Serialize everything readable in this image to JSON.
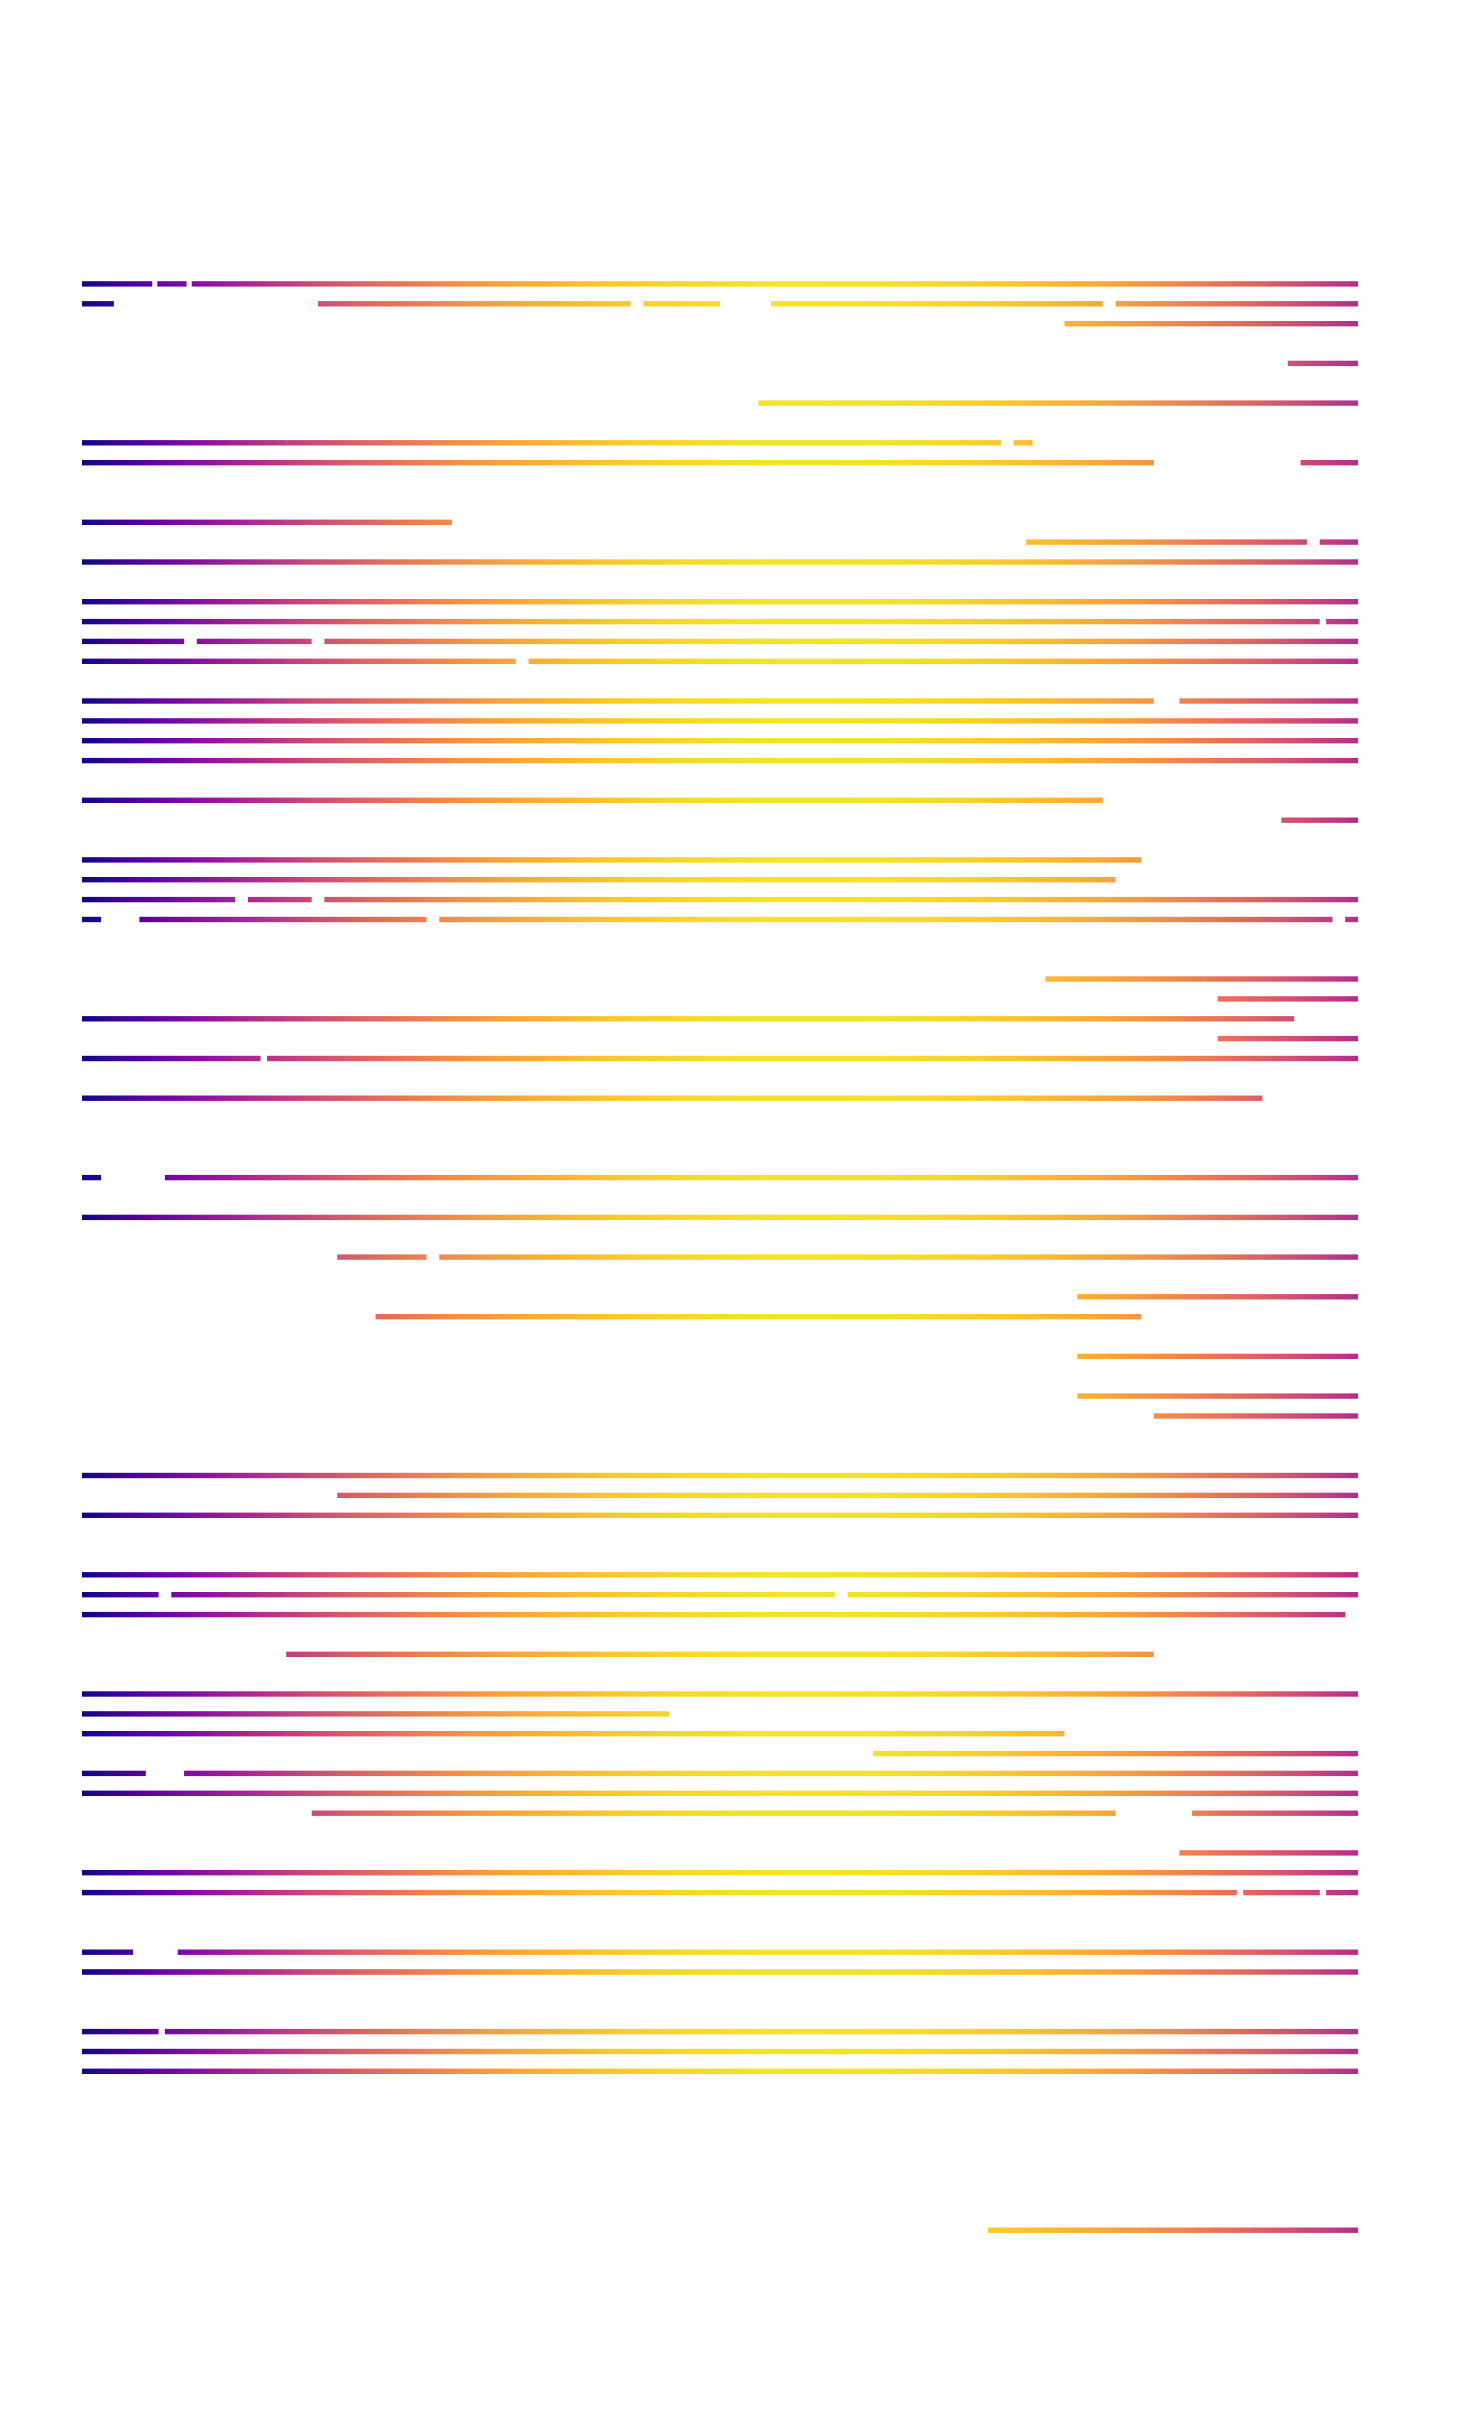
{
  "chart_data": {
    "type": "heatmap",
    "title": "",
    "xlabel": "",
    "ylabel": "",
    "colormap": "plasma",
    "grid": false,
    "axes_visible": false,
    "colors": [
      "#0d0887",
      "#5d01a6",
      "#9c179e",
      "#cc4778",
      "#ed7953",
      "#fdb42f",
      "#f0f921"
    ],
    "x_range": [
      0,
      1
    ],
    "n_rows": 100,
    "rows": [
      {
        "row": 0,
        "segments": [
          [
            0.0,
            0.055
          ],
          [
            0.059,
            0.082
          ],
          [
            0.086,
            0.53
          ],
          [
            0.53,
            1.0
          ]
        ]
      },
      {
        "row": 1,
        "segments": [
          [
            0.0,
            0.025
          ],
          [
            0.185,
            0.43
          ],
          [
            0.44,
            0.5
          ],
          [
            0.54,
            0.8
          ],
          [
            0.81,
            1.0
          ]
        ]
      },
      {
        "row": 2,
        "segments": [
          [
            0.77,
            0.975
          ],
          [
            0.975,
            1.0
          ]
        ]
      },
      {
        "row": 4,
        "segments": [
          [
            0.945,
            1.0
          ]
        ]
      },
      {
        "row": 6,
        "segments": [
          [
            0.53,
            1.0
          ]
        ]
      },
      {
        "row": 8,
        "segments": [
          [
            0.0,
            0.16
          ],
          [
            0.16,
            0.72
          ],
          [
            0.73,
            0.745
          ]
        ]
      },
      {
        "row": 9,
        "segments": [
          [
            0.0,
            0.71
          ],
          [
            0.71,
            0.84
          ],
          [
            0.955,
            1.0
          ]
        ]
      },
      {
        "row": 12,
        "segments": [
          [
            0.0,
            0.25
          ],
          [
            0.25,
            0.29
          ]
        ]
      },
      {
        "row": 13,
        "segments": [
          [
            0.74,
            0.96
          ],
          [
            0.97,
            1.0
          ]
        ]
      },
      {
        "row": 14,
        "segments": [
          [
            0.0,
            1.0
          ]
        ]
      },
      {
        "row": 16,
        "segments": [
          [
            0.0,
            0.34
          ],
          [
            0.34,
            1.0
          ]
        ]
      },
      {
        "row": 17,
        "segments": [
          [
            0.0,
            0.97
          ],
          [
            0.975,
            1.0
          ]
        ]
      },
      {
        "row": 18,
        "segments": [
          [
            0.0,
            0.08
          ],
          [
            0.09,
            0.18
          ],
          [
            0.19,
            0.56
          ],
          [
            0.56,
            1.0
          ]
        ]
      },
      {
        "row": 19,
        "segments": [
          [
            0.0,
            0.34
          ],
          [
            0.35,
            1.0
          ]
        ]
      },
      {
        "row": 21,
        "segments": [
          [
            0.0,
            0.25
          ],
          [
            0.25,
            0.84
          ],
          [
            0.86,
            1.0
          ]
        ]
      },
      {
        "row": 22,
        "segments": [
          [
            0.0,
            1.0
          ]
        ]
      },
      {
        "row": 23,
        "segments": [
          [
            0.0,
            1.0
          ]
        ]
      },
      {
        "row": 24,
        "segments": [
          [
            0.0,
            0.8
          ],
          [
            0.8,
            1.0
          ]
        ]
      },
      {
        "row": 26,
        "segments": [
          [
            0.0,
            0.8
          ]
        ]
      },
      {
        "row": 27,
        "segments": [
          [
            0.94,
            1.0
          ]
        ]
      },
      {
        "row": 29,
        "segments": [
          [
            0.0,
            0.83
          ]
        ]
      },
      {
        "row": 30,
        "segments": [
          [
            0.0,
            0.81
          ]
        ]
      },
      {
        "row": 31,
        "segments": [
          [
            0.0,
            0.12
          ],
          [
            0.13,
            0.18
          ],
          [
            0.19,
            0.8
          ],
          [
            0.8,
            0.96
          ],
          [
            0.96,
            1.0
          ]
        ]
      },
      {
        "row": 32,
        "segments": [
          [
            0.0,
            0.015
          ],
          [
            0.045,
            0.27
          ],
          [
            0.28,
            0.98
          ],
          [
            0.99,
            1.0
          ]
        ]
      },
      {
        "row": 35,
        "segments": [
          [
            0.755,
            0.88
          ],
          [
            0.88,
            1.0
          ]
        ]
      },
      {
        "row": 36,
        "segments": [
          [
            0.89,
            1.0
          ]
        ]
      },
      {
        "row": 37,
        "segments": [
          [
            0.0,
            0.95
          ]
        ]
      },
      {
        "row": 38,
        "segments": [
          [
            0.89,
            1.0
          ]
        ]
      },
      {
        "row": 39,
        "segments": [
          [
            0.0,
            0.14
          ],
          [
            0.145,
            1.0
          ]
        ]
      },
      {
        "row": 41,
        "segments": [
          [
            0.0,
            0.925
          ]
        ]
      },
      {
        "row": 45,
        "segments": [
          [
            0.0,
            0.015
          ],
          [
            0.065,
            1.0
          ]
        ]
      },
      {
        "row": 47,
        "segments": [
          [
            0.0,
            1.0
          ]
        ]
      },
      {
        "row": 49,
        "segments": [
          [
            0.2,
            0.27
          ],
          [
            0.28,
            1.0
          ]
        ]
      },
      {
        "row": 51,
        "segments": [
          [
            0.78,
            1.0
          ]
        ]
      },
      {
        "row": 52,
        "segments": [
          [
            0.23,
            0.83
          ]
        ]
      },
      {
        "row": 54,
        "segments": [
          [
            0.78,
            1.0
          ]
        ]
      },
      {
        "row": 56,
        "segments": [
          [
            0.78,
            1.0
          ]
        ]
      },
      {
        "row": 57,
        "segments": [
          [
            0.84,
            1.0
          ]
        ]
      },
      {
        "row": 60,
        "segments": [
          [
            0.0,
            0.95
          ],
          [
            0.95,
            1.0
          ]
        ]
      },
      {
        "row": 61,
        "segments": [
          [
            0.2,
            1.0
          ]
        ]
      },
      {
        "row": 62,
        "segments": [
          [
            0.0,
            1.0
          ]
        ]
      },
      {
        "row": 65,
        "segments": [
          [
            0.0,
            1.0
          ]
        ]
      },
      {
        "row": 66,
        "segments": [
          [
            0.0,
            0.06
          ],
          [
            0.07,
            0.59
          ],
          [
            0.6,
            1.0
          ]
        ]
      },
      {
        "row": 67,
        "segments": [
          [
            0.0,
            0.23
          ],
          [
            0.23,
            0.99
          ]
        ]
      },
      {
        "row": 69,
        "segments": [
          [
            0.16,
            0.74
          ],
          [
            0.74,
            0.84
          ]
        ]
      },
      {
        "row": 71,
        "segments": [
          [
            0.0,
            0.41
          ],
          [
            0.41,
            1.0
          ]
        ]
      },
      {
        "row": 72,
        "segments": [
          [
            0.0,
            0.46
          ]
        ]
      },
      {
        "row": 73,
        "segments": [
          [
            0.0,
            0.77
          ]
        ]
      },
      {
        "row": 74,
        "segments": [
          [
            0.62,
            0.85
          ],
          [
            0.85,
            1.0
          ]
        ]
      },
      {
        "row": 75,
        "segments": [
          [
            0.0,
            0.05
          ],
          [
            0.08,
            0.84
          ],
          [
            0.84,
            1.0
          ]
        ]
      },
      {
        "row": 76,
        "segments": [
          [
            0.0,
            0.29
          ],
          [
            0.29,
            1.0
          ]
        ]
      },
      {
        "row": 77,
        "segments": [
          [
            0.18,
            0.81
          ],
          [
            0.87,
            1.0
          ]
        ]
      },
      {
        "row": 79,
        "segments": [
          [
            0.86,
            1.0
          ]
        ]
      },
      {
        "row": 80,
        "segments": [
          [
            0.0,
            0.94
          ],
          [
            0.88,
            1.0
          ]
        ]
      },
      {
        "row": 81,
        "segments": [
          [
            0.0,
            0.905
          ],
          [
            0.91,
            0.97
          ],
          [
            0.975,
            1.0
          ]
        ]
      },
      {
        "row": 84,
        "segments": [
          [
            0.0,
            0.04
          ],
          [
            0.075,
            1.0
          ]
        ]
      },
      {
        "row": 85,
        "segments": [
          [
            0.0,
            0.77
          ],
          [
            0.0,
            1.0
          ]
        ]
      },
      {
        "row": 88,
        "segments": [
          [
            0.0,
            0.06
          ],
          [
            0.065,
            1.0
          ]
        ]
      },
      {
        "row": 89,
        "segments": [
          [
            0.0,
            0.6
          ],
          [
            0.59,
            0.88
          ],
          [
            0.88,
            1.0
          ]
        ]
      },
      {
        "row": 90,
        "segments": [
          [
            0.0,
            1.0
          ]
        ]
      },
      {
        "row": 98,
        "segments": [
          [
            0.71,
            0.86
          ],
          [
            0.86,
            1.0
          ]
        ]
      }
    ]
  }
}
